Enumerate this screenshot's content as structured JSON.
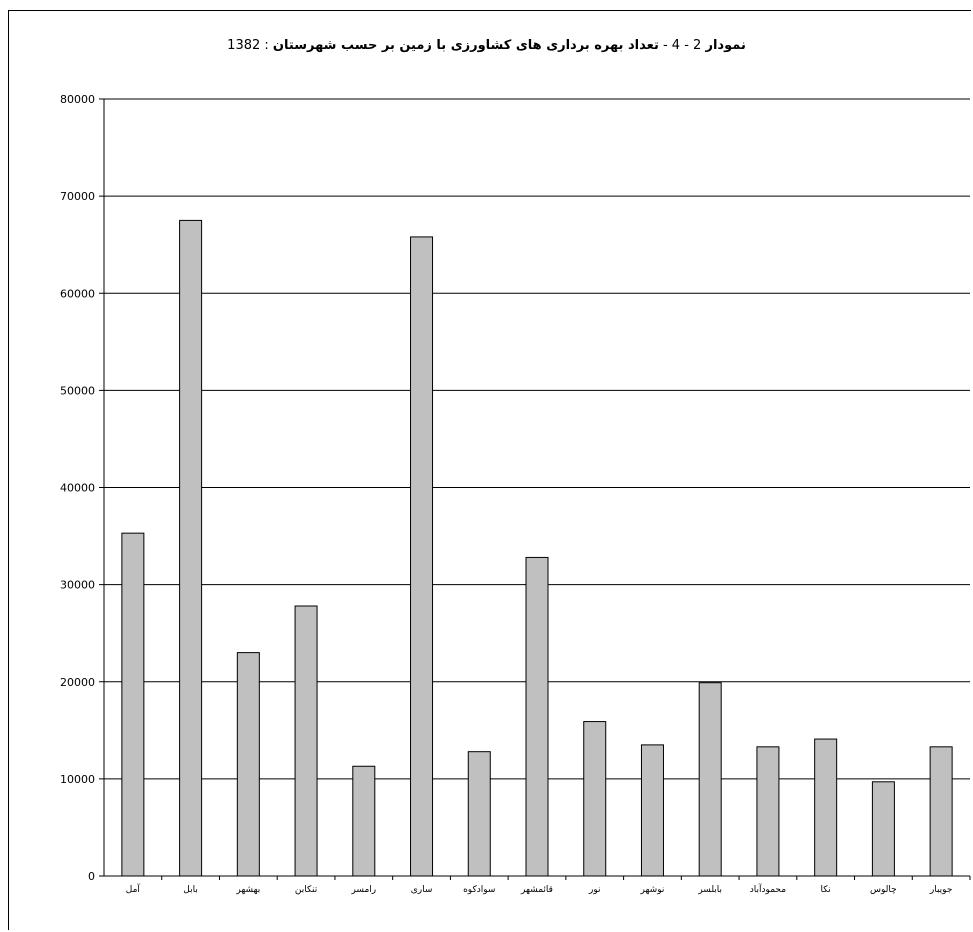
{
  "chart_data": {
    "type": "bar",
    "title_bold": "نمودار",
    "title_number": "2 - 4 -",
    "title_text": "تعداد بهره برداری های کشاورزی با زمین بر حسب شهرستان",
    "title_year": ": 1382",
    "xlabel": "",
    "ylabel": "",
    "ylim": [
      0,
      80000
    ],
    "yticks": [
      0,
      10000,
      20000,
      30000,
      40000,
      50000,
      60000,
      70000,
      80000
    ],
    "grid": true,
    "legend": "none",
    "categories": [
      "آمل",
      "بابل",
      "بهشهر",
      "تنکابن",
      "رامسر",
      "ساری",
      "سوادکوه",
      "قائمشهر",
      "نور",
      "نوشهر",
      "بابلسر",
      "محمودآباد",
      "نکا",
      "چالوس",
      "جویبار"
    ],
    "values": [
      35300,
      67500,
      23000,
      27800,
      11300,
      65800,
      12800,
      32800,
      15900,
      13500,
      19900,
      13300,
      14100,
      9700,
      13300
    ],
    "colors": {
      "bar_fill": "#c0c0c0",
      "bar_stroke": "#000000",
      "grid": "#000000"
    }
  }
}
